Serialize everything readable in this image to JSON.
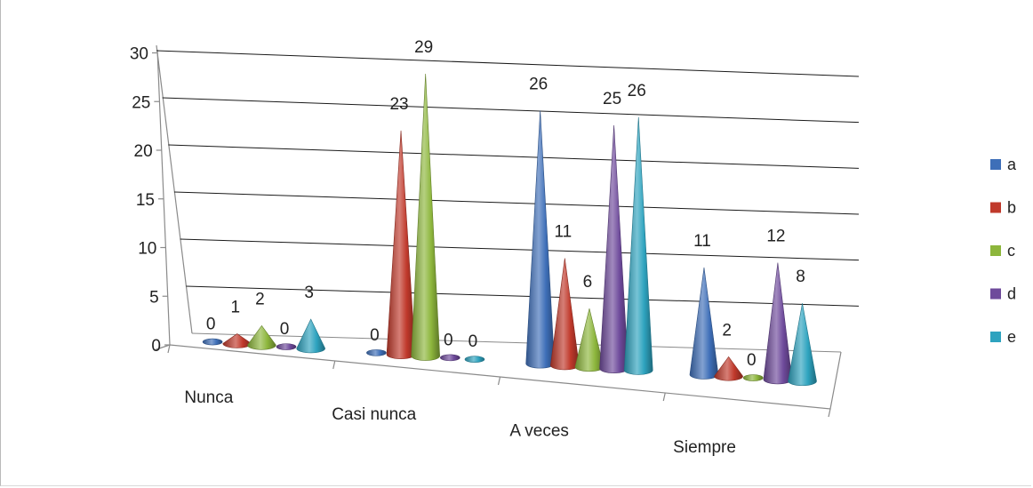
{
  "chart_data": {
    "type": "bar",
    "subtype": "3d-cone",
    "title": "",
    "xlabel": "",
    "ylabel": "",
    "ylim": [
      0,
      30
    ],
    "yticks": [
      0,
      5,
      10,
      15,
      20,
      25,
      30
    ],
    "categories": [
      "Nunca",
      "Casi nunca",
      "A veces",
      "Siempre"
    ],
    "series": [
      {
        "name": "a",
        "color": "#3E6FB8",
        "values": [
          0,
          0,
          26,
          11
        ]
      },
      {
        "name": "b",
        "color": "#C0392B",
        "values": [
          1,
          23,
          11,
          2
        ]
      },
      {
        "name": "c",
        "color": "#8DB63C",
        "values": [
          2,
          29,
          6,
          0
        ]
      },
      {
        "name": "d",
        "color": "#6E4A9B",
        "values": [
          0,
          0,
          25,
          12
        ]
      },
      {
        "name": "e",
        "color": "#2EA3BF",
        "values": [
          3,
          0,
          26,
          8
        ]
      }
    ],
    "grid": true,
    "legend_position": "right"
  }
}
